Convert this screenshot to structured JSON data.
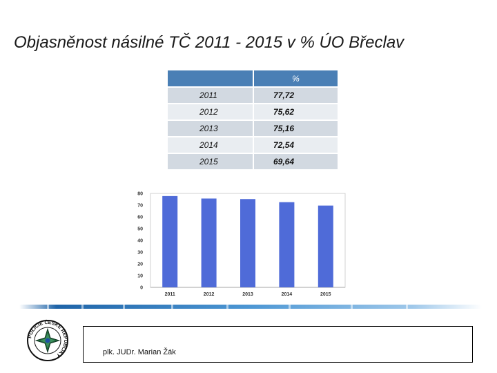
{
  "title": "Objasněnost násilné TČ 2011 - 2015 v % ÚO Břeclav",
  "table": {
    "header": [
      "",
      "%"
    ],
    "rows": [
      {
        "year": "2011",
        "value": "77,72"
      },
      {
        "year": "2012",
        "value": "75,62"
      },
      {
        "year": "2013",
        "value": "75,16"
      },
      {
        "year": "2014",
        "value": "72,54"
      },
      {
        "year": "2015",
        "value": "69,64"
      }
    ]
  },
  "chart_data": {
    "type": "bar",
    "categories": [
      "2011",
      "2012",
      "2013",
      "2014",
      "2015"
    ],
    "values": [
      77.72,
      75.62,
      75.16,
      72.54,
      69.64
    ],
    "title": "",
    "xlabel": "",
    "ylabel": "",
    "ylim": [
      0,
      80
    ],
    "yticks": [
      0,
      10,
      20,
      30,
      40,
      50,
      60,
      70,
      80
    ],
    "color": "#4f6bd8",
    "grid": false
  },
  "footer": {
    "author": "plk. JUDr. Marian Žák",
    "logo_text": "POLICIE ČESKÉ REPUBLIKY"
  },
  "colors": {
    "header": "#4a7fb5",
    "row_odd": "#d2d9e1",
    "row_even": "#e9edf1",
    "stripe": "#2b7bc0"
  }
}
